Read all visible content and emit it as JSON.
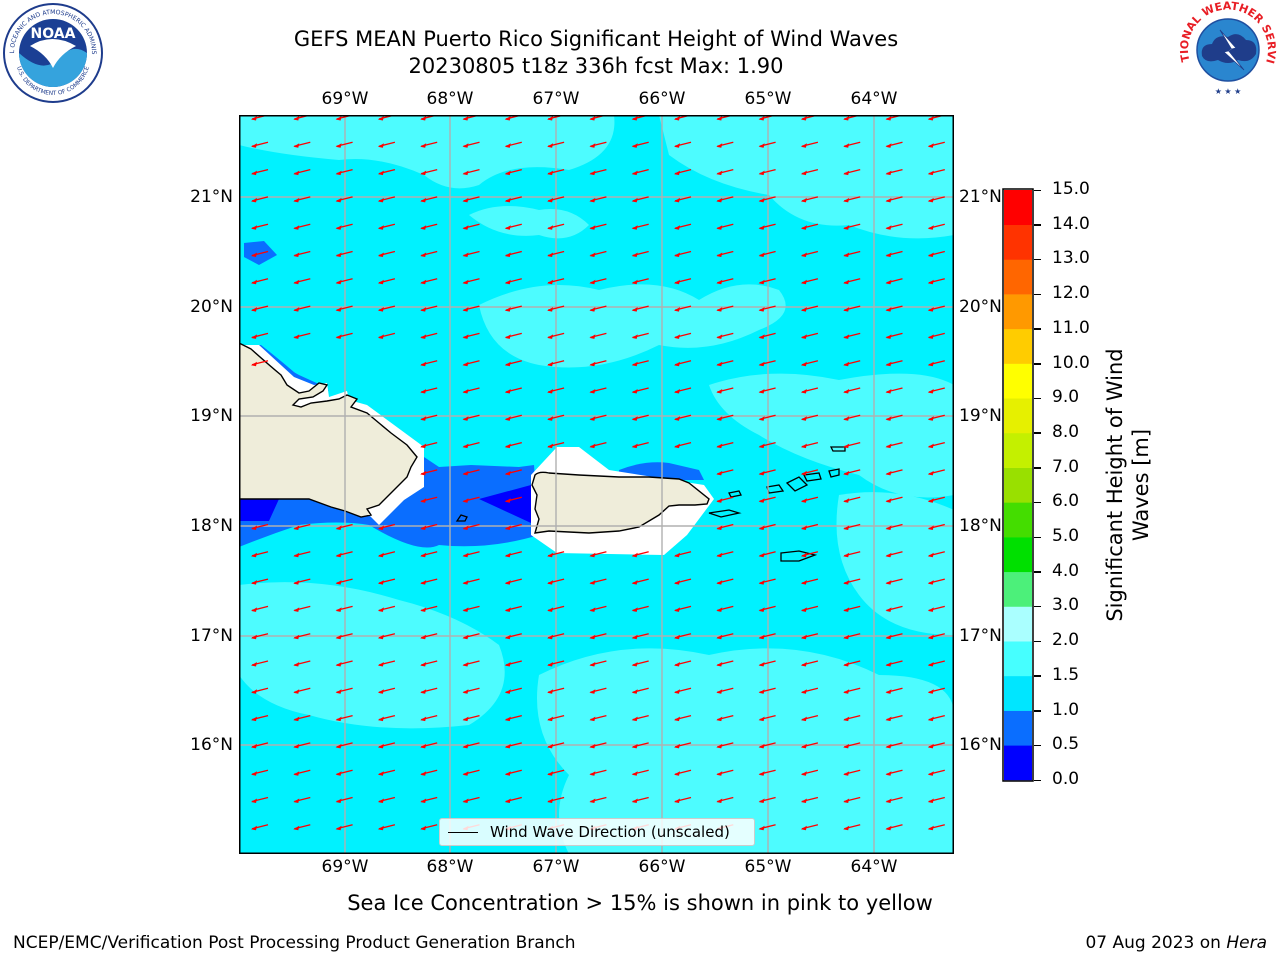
{
  "header": {
    "title_line1": "GEFS MEAN Puerto Rico Significant Height of Wind Waves",
    "title_line2": "20230805 t18z 336h fcst   Max: 1.90"
  },
  "logos": {
    "left": {
      "name": "NOAA",
      "ring_text": "NATIONAL OCEANIC AND ATMOSPHERIC ADMINISTRATION",
      "ring_text_bottom": "U.S. DEPARTMENT OF COMMERCE"
    },
    "right": {
      "ring_text": "NATIONAL WEATHER SERVICE"
    }
  },
  "map": {
    "lon_labels": [
      "69°W",
      "68°W",
      "67°W",
      "66°W",
      "65°W",
      "64°W"
    ],
    "lat_labels": [
      "21°N",
      "20°N",
      "19°N",
      "18°N",
      "17°N",
      "16°N"
    ],
    "legend_label": "Wind Wave Direction (unscaled)",
    "arrow_color": "#ff0000",
    "land_color": "#efedda",
    "grid_color": "#b0b0b0"
  },
  "colorbar": {
    "label": "Significant Height of Wind Waves [m]",
    "label_line1": "Significant Height of Wind",
    "label_line2": "Waves [m]",
    "ticks": [
      "0.0",
      "0.5",
      "1.0",
      "1.5",
      "2.0",
      "3.0",
      "4.0",
      "5.0",
      "6.0",
      "7.0",
      "8.0",
      "9.0",
      "10.0",
      "11.0",
      "12.0",
      "13.0",
      "14.0",
      "15.0"
    ],
    "colors": [
      "#0000ff",
      "#0a6eff",
      "#00e6ff",
      "#46ffff",
      "#aaffff",
      "#4cf07a",
      "#00e000",
      "#44dd00",
      "#99e000",
      "#c4f000",
      "#e6f000",
      "#ffff00",
      "#ffcc00",
      "#ff9900",
      "#ff6600",
      "#ff3300",
      "#ff0000"
    ]
  },
  "footer": {
    "note": "Sea Ice Concentration > 15% is shown in pink to yellow",
    "left": "NCEP/EMC/Verification Post Processing Product Generation Branch",
    "date": "07 Aug 2023 on ",
    "machine": "Hera"
  }
}
